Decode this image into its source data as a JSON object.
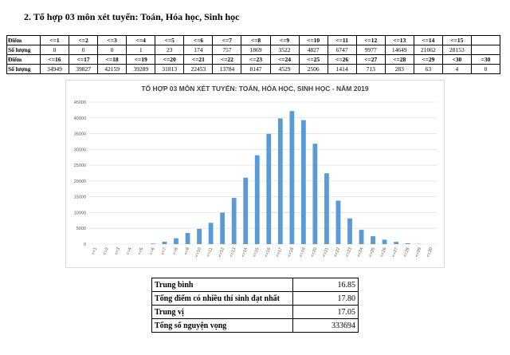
{
  "heading": "2. Tổ hợp 03 môn xét tuyển: Toán, Hóa học, Sinh học",
  "score_table": {
    "rows": [
      [
        "Điểm",
        "<=1",
        "<=2",
        "<=3",
        "<=4",
        "<=5",
        "<=6",
        "<=7",
        "<=8",
        "<=9",
        "<=10",
        "<=11",
        "<=12",
        "<=13",
        "<=14",
        "<=15"
      ],
      [
        "Số lượng",
        0,
        0,
        0,
        1,
        23,
        174,
        757,
        1869,
        3522,
        4827,
        6747,
        9977,
        14649,
        21062,
        28153
      ],
      [
        "Điểm",
        "<=16",
        "<=17",
        "<=18",
        "<=19",
        "<=20",
        "<=21",
        "<=22",
        "<=23",
        "<=24",
        "<=25",
        "<=26",
        "<=27",
        "<=28",
        "<=29",
        "<30",
        "=30"
      ],
      [
        "Số lượng",
        34949,
        39827,
        42159,
        39289,
        31813,
        22453,
        13784,
        8147,
        4529,
        2506,
        1414,
        713,
        283,
        63,
        4,
        0
      ]
    ]
  },
  "chart_data": {
    "type": "bar",
    "title": "TỔ HỢP 03 MÔN XÉT TUYỂN: TOÁN, HÓA HỌC, SINH HỌC - NĂM 2019",
    "categories": [
      "<=1",
      "<=2",
      "<=3",
      "<=4",
      "<=5",
      "<=6",
      "<=7",
      "<=8",
      "<=9",
      "<=10",
      "<=11",
      "<=12",
      "<=13",
      "<=14",
      "<=15",
      "<=16",
      "<=17",
      "<=18",
      "<=19",
      "<=20",
      "<=21",
      "<=22",
      "<=23",
      "<=24",
      "<=25",
      "<=26",
      "<=27",
      "<=28",
      "<=29",
      "<=30"
    ],
    "values": [
      0,
      0,
      0,
      1,
      23,
      174,
      757,
      1869,
      3522,
      4827,
      6747,
      9977,
      14649,
      21062,
      28153,
      34949,
      39827,
      42159,
      39289,
      31813,
      22453,
      13784,
      8147,
      4529,
      2506,
      1414,
      713,
      283,
      63,
      4
    ],
    "color": "#5b9bd5",
    "ylim": [
      0,
      45000
    ],
    "yticks": [
      0,
      5000,
      10000,
      15000,
      20000,
      25000,
      30000,
      35000,
      40000,
      45000
    ],
    "grid": true
  },
  "summary_table": {
    "rows": [
      [
        "Trung bình",
        16.85
      ],
      [
        "Tổng điểm có nhiều thí sinh đạt nhất",
        "17.80"
      ],
      [
        "Trung vị",
        17.05
      ],
      [
        "Tổng số nguyện vọng",
        333694
      ]
    ]
  }
}
